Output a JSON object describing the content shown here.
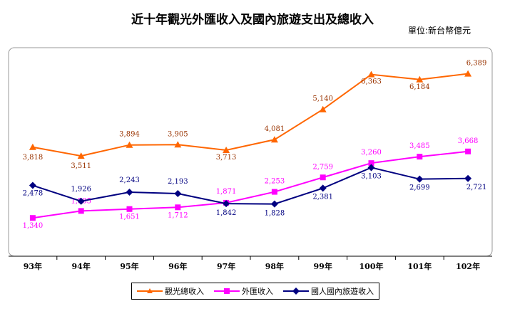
{
  "chart_data": {
    "type": "line",
    "title": "近十年觀光外匯收入及國內旅遊支出及總收入",
    "unit": "單位:新台幣億元",
    "categories": [
      "93年",
      "94年",
      "95年",
      "96年",
      "97年",
      "98年",
      "99年",
      "100年",
      "101年",
      "102年"
    ],
    "ylim": [
      0,
      7300
    ],
    "grid": false,
    "legend_position": "bottom",
    "series": [
      {
        "name": "觀光總收入",
        "color": "#ff6600",
        "marker": "triangle",
        "values": [
          3818,
          3511,
          3894,
          3905,
          3713,
          4081,
          5140,
          6363,
          6184,
          6389
        ],
        "labels": [
          "3,818",
          "3,511",
          "3,894",
          "3,905",
          "3,713",
          "4,081",
          "5,140",
          "6,363",
          "6,184",
          "6,389"
        ],
        "label_color": "#993300"
      },
      {
        "name": "外匯收入",
        "color": "#ff00ff",
        "marker": "square",
        "values": [
          1340,
          1585,
          1651,
          1712,
          1871,
          2253,
          2759,
          3260,
          3485,
          3668
        ],
        "labels": [
          "1,340",
          "1,585",
          "1,651",
          "1,712",
          "1,871",
          "2,253",
          "2,759",
          "3,260",
          "3,485",
          "3,668"
        ],
        "label_color": "#ff00ff"
      },
      {
        "name": "國人國內旅遊收入",
        "color": "#000080",
        "marker": "diamond",
        "values": [
          2478,
          1926,
          2243,
          2193,
          1842,
          1828,
          2381,
          3103,
          2699,
          2721
        ],
        "labels": [
          "2,478",
          "1,926",
          "2,243",
          "2,193",
          "1,842",
          "1,828",
          "2,381",
          "3,103",
          "2,699",
          "2,721"
        ],
        "label_color": "#000080"
      }
    ]
  }
}
